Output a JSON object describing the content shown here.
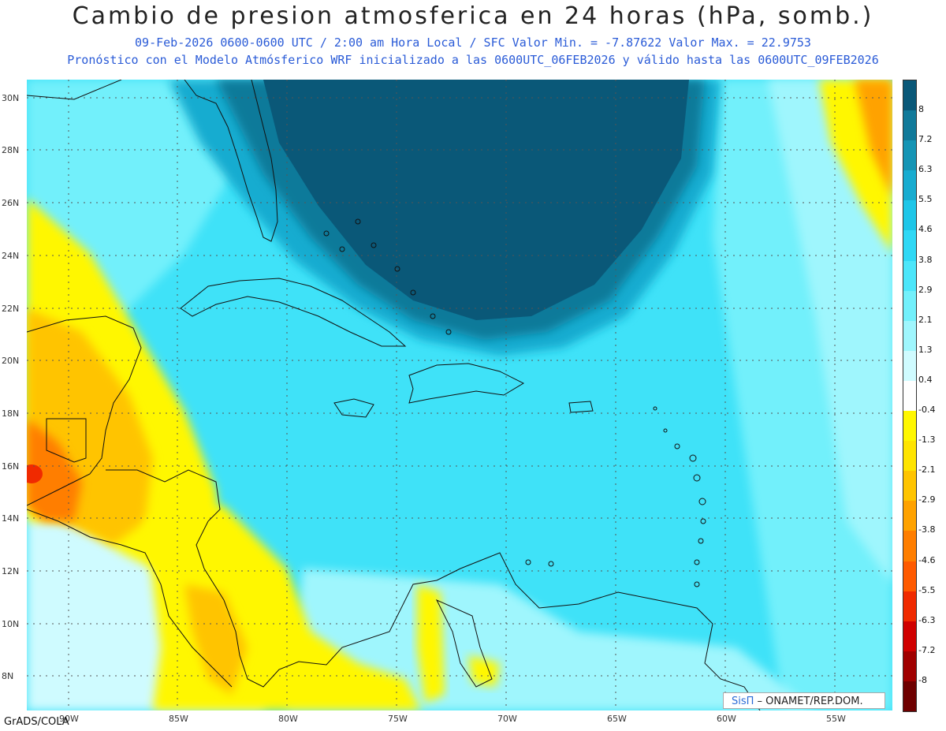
{
  "title": "Cambio de presion atmosferica en 24 horas (hPa, somb.)",
  "subtitle_line1": "09-Feb-2026    0600-0600 UTC / 2:00 am Hora Local / SFC    Valor Min. = -7.87622  Valor Max. = 22.9753",
  "subtitle_line2": "Pronóstico con el Modelo Atmósferico WRF inicializado a las 0600UTC_06FEB2026 y válido hasta las  0600UTC_09FEB2026",
  "lat_labels": [
    "30N",
    "28N",
    "26N",
    "24N",
    "22N",
    "20N",
    "18N",
    "16N",
    "14N",
    "12N",
    "10N",
    "8N"
  ],
  "lon_labels": [
    "90W",
    "85W",
    "80W",
    "75W",
    "70W",
    "65W",
    "60W",
    "55W"
  ],
  "colorbar_labels": [
    "8",
    "7.2",
    "6.3",
    "5.5",
    "4.6",
    "3.8",
    "2.9",
    "2.1",
    "1.3",
    "0.4",
    "-0.4",
    "-1.3",
    "-2.1",
    "-2.9",
    "-3.8",
    "-4.6",
    "-5.5",
    "-6.3",
    "-7.2",
    "-8"
  ],
  "colorbar_colors": [
    "#0a5878",
    "#117a9a",
    "#1595b5",
    "#18acd0",
    "#1ec6e8",
    "#2fd8f5",
    "#4ce6fa",
    "#72f0fb",
    "#9ff6fd",
    "#cffbff",
    "#ffffff",
    "#fff700",
    "#ffe400",
    "#ffc400",
    "#ffa200",
    "#ff7e00",
    "#ff5a00",
    "#f02a00",
    "#d00000",
    "#a00000",
    "#6e0000"
  ],
  "grads_label": "GrADS/COLA",
  "credit_sis": "SisΠ",
  "credit_text": " – ONAMET/REP.DOM."
}
